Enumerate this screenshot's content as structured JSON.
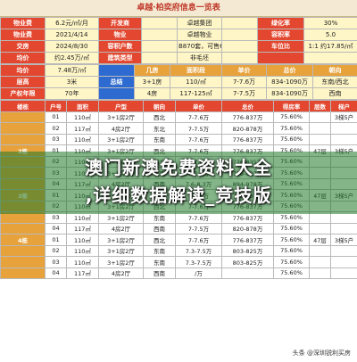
{
  "title": "卓越·柏奕府信息一览表",
  "info_rows": [
    [
      "物业费",
      "6.2元/㎡/月",
      "开发商",
      "",
      "卓越集团",
      "",
      "绿化率",
      "30%"
    ],
    [
      "物业费",
      "2021/4/14",
      "物业",
      "",
      "卓越物业",
      "",
      "容积率",
      "5.0"
    ],
    [
      "交房",
      "2024/8/30",
      "容积户数",
      "",
      "B870套，可售637套",
      "",
      "车位比",
      "1:1 约17.85/㎡"
    ],
    [
      "均价",
      "约2.45万/㎡",
      "建筑类型",
      "",
      "非毛坯",
      "",
      "",
      ""
    ]
  ],
  "header2": [
    "均价",
    "7.48万/㎡",
    "",
    "几房",
    "面积段",
    "单价",
    "总价",
    "朝向"
  ],
  "info_rows2": [
    [
      "层高",
      "3米",
      "总结",
      "3+1房",
      "110/㎡",
      "7-7.6万",
      "834-1090万",
      "东南/西北"
    ],
    [
      "产权年限",
      "70年",
      "",
      "4房",
      "117-125㎡",
      "7-7.5万",
      "834-1090万",
      "西南"
    ]
  ],
  "unit_header": [
    "楼栋",
    "户号",
    "面积",
    "户型",
    "朝向",
    "单价",
    "总价",
    "得房率",
    "层数",
    "梯户"
  ],
  "units": [
    [
      "",
      "01",
      "110㎡",
      "3+1房2厅",
      "西北",
      "7-7.6万",
      "776-837万",
      "75.60%",
      "",
      "3梯5户"
    ],
    [
      "",
      "02",
      "117㎡",
      "4房2厅",
      "东北",
      "7-7.5万",
      "820-878万",
      "75.60%",
      "",
      ""
    ],
    [
      "",
      "03",
      "110㎡",
      "3+1房2厅",
      "东南",
      "7-7.6万",
      "776-837万",
      "75.60%",
      "",
      ""
    ],
    [
      "2栋",
      "01",
      "110㎡",
      "3+1房2厅",
      "西北",
      "7-7.6万",
      "776-837万",
      "75.60%",
      "47层",
      "3梯5户"
    ],
    [
      "",
      "02",
      "110㎡",
      "3+1房2厅",
      "西北",
      "7-7.6万",
      "776-835万",
      "75.60%",
      "",
      ""
    ],
    [
      "",
      "03",
      "110㎡",
      "3+1房2厅",
      "东南",
      "7-7.6万",
      "776-837万",
      "75.60%",
      "",
      ""
    ],
    [
      "",
      "04",
      "117㎡",
      "4房2厅",
      "西南",
      "7.6-8.3万",
      "894-978万",
      "75.60%",
      "",
      ""
    ],
    [
      "3栋",
      "01",
      "110㎡",
      "3+1房2厅",
      "东南",
      "7-7.6万",
      "776-837万",
      "75.60%",
      "47层",
      "3梯5户"
    ],
    [
      "",
      "02",
      "110㎡",
      "3+1房2厅",
      "西北",
      "7-7.6万",
      "776-837万",
      "75.60%",
      "",
      ""
    ],
    [
      "",
      "03",
      "110㎡",
      "3+1房2厅",
      "东南",
      "7-7.6万",
      "776-837万",
      "75.60%",
      "",
      ""
    ],
    [
      "",
      "04",
      "117㎡",
      "4房2厅",
      "西南",
      "7-7.5万",
      "820-878万",
      "75.60%",
      "",
      ""
    ],
    [
      "4栋",
      "01",
      "110㎡",
      "3+1房2厅",
      "西北",
      "7-7.6万",
      "776-837万",
      "75.60%",
      "47层",
      "3梯5户"
    ],
    [
      "",
      "02",
      "110㎡",
      "3+1房2厅",
      "东南",
      "7.3-7.5万",
      "803-825万",
      "75.60%",
      "",
      ""
    ],
    [
      "",
      "03",
      "110㎡",
      "3+1房2厅",
      "东南",
      "7.3-7.5万",
      "803-825万",
      "75.60%",
      "",
      ""
    ],
    [
      "",
      "04",
      "117㎡",
      "4房2厅",
      "西南",
      "/万",
      "",
      "75.60%",
      "",
      ""
    ]
  ],
  "overlay": {
    "line1": "澳门新澳免费资料大全",
    "line2": ",详细数据解读_竞技版"
  },
  "watermark": "头条 @深圳锐利买房"
}
